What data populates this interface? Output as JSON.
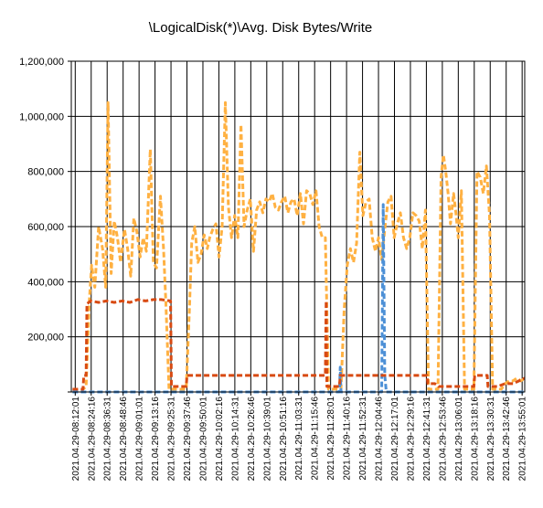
{
  "chart_data": {
    "type": "line",
    "title": "\\LogicalDisk(*)\\Avg. Disk Bytes/Write",
    "xlabel": "",
    "ylabel": "",
    "ylim": [
      0,
      1200000
    ],
    "y_ticks": [
      0,
      200000,
      400000,
      600000,
      800000,
      1000000,
      1200000
    ],
    "y_tick_labels": [
      "",
      "200,000",
      "400,000",
      "600,000",
      "800,000",
      "1,000,000",
      "1,200,000"
    ],
    "grid": true,
    "legend": "none",
    "x_start": "2021.04.29-08:09:00",
    "x_end": "2021.04.29-13:57:00",
    "categories": [
      "2021.04.29-08:12:01",
      "2021.04.29-08:24:16",
      "2021.04.29-08:36:31",
      "2021.04.29-08:48:46",
      "2021.04.29-09:01:01",
      "2021.04.29-09:13:16",
      "2021.04.29-09:25:31",
      "2021.04.29-09:37:46",
      "2021.04.29-09:50:01",
      "2021.04.29-10:02:16",
      "2021.04.29-10:14:31",
      "2021.04.29-10:26:46",
      "2021.04.29-10:39:01",
      "2021.04.29-10:51:16",
      "2021.04.29-11:03:31",
      "2021.04.29-11:15:46",
      "2021.04.29-11:28:01",
      "2021.04.29-11:40:16",
      "2021.04.29-11:52:31",
      "2021.04.29-12:04:46",
      "2021.04.29-12:17:01",
      "2021.04.29-12:29:16",
      "2021.04.29-12:41:31",
      "2021.04.29-12:53:46",
      "2021.04.29-13:06:01",
      "2021.04.29-13:18:16",
      "2021.04.29-13:30:31",
      "2021.04.29-13:42:46",
      "2021.04.29-13:55:01"
    ],
    "series": [
      {
        "color": "#ffb142",
        "values": [
          [
            8.1667,
            5000
          ],
          [
            8.28,
            5000
          ],
          [
            8.34,
            20000
          ],
          [
            8.38,
            330000
          ],
          [
            8.41,
            460000
          ],
          [
            8.45,
            380000
          ],
          [
            8.5,
            600000
          ],
          [
            8.55,
            520000
          ],
          [
            8.59,
            380000
          ],
          [
            8.62,
            1050000
          ],
          [
            8.66,
            430000
          ],
          [
            8.7,
            620000
          ],
          [
            8.74,
            560000
          ],
          [
            8.78,
            470000
          ],
          [
            8.83,
            590000
          ],
          [
            8.87,
            520000
          ],
          [
            8.91,
            420000
          ],
          [
            8.95,
            630000
          ],
          [
            8.99,
            580000
          ],
          [
            9.03,
            490000
          ],
          [
            9.07,
            560000
          ],
          [
            9.11,
            510000
          ],
          [
            9.16,
            880000
          ],
          [
            9.2,
            470000
          ],
          [
            9.24,
            450000
          ],
          [
            9.29,
            710000
          ],
          [
            9.33,
            520000
          ],
          [
            9.36,
            320000
          ],
          [
            9.4,
            10000
          ],
          [
            9.55,
            10000
          ],
          [
            9.62,
            10000
          ],
          [
            9.66,
            290000
          ],
          [
            9.69,
            540000
          ],
          [
            9.73,
            600000
          ],
          [
            9.77,
            470000
          ],
          [
            9.81,
            500000
          ],
          [
            9.85,
            570000
          ],
          [
            9.89,
            520000
          ],
          [
            9.92,
            560000
          ],
          [
            9.96,
            590000
          ],
          [
            10.0,
            610000
          ],
          [
            10.04,
            490000
          ],
          [
            10.08,
            600000
          ],
          [
            10.12,
            1050000
          ],
          [
            10.16,
            670000
          ],
          [
            10.2,
            560000
          ],
          [
            10.24,
            640000
          ],
          [
            10.28,
            560000
          ],
          [
            10.32,
            970000
          ],
          [
            10.36,
            600000
          ],
          [
            10.4,
            660000
          ],
          [
            10.44,
            700000
          ],
          [
            10.48,
            510000
          ],
          [
            10.52,
            660000
          ],
          [
            10.56,
            690000
          ],
          [
            10.6,
            650000
          ],
          [
            10.64,
            700000
          ],
          [
            10.68,
            690000
          ],
          [
            10.72,
            720000
          ],
          [
            10.76,
            670000
          ],
          [
            10.8,
            660000
          ],
          [
            10.84,
            690000
          ],
          [
            10.88,
            710000
          ],
          [
            10.92,
            650000
          ],
          [
            10.96,
            690000
          ],
          [
            11.0,
            700000
          ],
          [
            11.04,
            640000
          ],
          [
            11.08,
            720000
          ],
          [
            11.12,
            610000
          ],
          [
            11.16,
            730000
          ],
          [
            11.2,
            720000
          ],
          [
            11.24,
            680000
          ],
          [
            11.28,
            730000
          ],
          [
            11.32,
            600000
          ],
          [
            11.36,
            560000
          ],
          [
            11.4,
            560000
          ],
          [
            11.44,
            10000
          ],
          [
            11.6,
            10000
          ],
          [
            11.64,
            300000
          ],
          [
            11.68,
            460000
          ],
          [
            11.72,
            520000
          ],
          [
            11.76,
            470000
          ],
          [
            11.8,
            540000
          ],
          [
            11.84,
            870000
          ],
          [
            11.88,
            640000
          ],
          [
            11.92,
            690000
          ],
          [
            11.96,
            700000
          ],
          [
            12.0,
            560000
          ],
          [
            12.04,
            510000
          ],
          [
            12.08,
            560000
          ],
          [
            12.12,
            480000
          ],
          [
            12.16,
            590000
          ],
          [
            12.2,
            690000
          ],
          [
            12.24,
            710000
          ],
          [
            12.28,
            560000
          ],
          [
            12.32,
            610000
          ],
          [
            12.36,
            650000
          ],
          [
            12.4,
            560000
          ],
          [
            12.44,
            520000
          ],
          [
            12.48,
            560000
          ],
          [
            12.52,
            650000
          ],
          [
            12.56,
            640000
          ],
          [
            12.6,
            620000
          ],
          [
            12.64,
            520000
          ],
          [
            12.68,
            660000
          ],
          [
            12.72,
            10000
          ],
          [
            12.84,
            10000
          ],
          [
            12.86,
            390000
          ],
          [
            12.88,
            780000
          ],
          [
            12.91,
            860000
          ],
          [
            12.94,
            800000
          ],
          [
            12.97,
            720000
          ],
          [
            13.0,
            610000
          ],
          [
            13.04,
            720000
          ],
          [
            13.07,
            650000
          ],
          [
            13.1,
            560000
          ],
          [
            13.14,
            730000
          ],
          [
            13.18,
            10000
          ],
          [
            13.3,
            10000
          ],
          [
            13.34,
            800000
          ],
          [
            13.38,
            780000
          ],
          [
            13.42,
            720000
          ],
          [
            13.46,
            820000
          ],
          [
            13.5,
            640000
          ],
          [
            13.54,
            10000
          ],
          [
            13.62,
            10000
          ],
          [
            13.65,
            10000
          ],
          [
            13.7,
            30000
          ],
          [
            13.75,
            40000
          ],
          [
            13.8,
            40000
          ],
          [
            13.85,
            50000
          ],
          [
            13.9,
            40000
          ],
          [
            13.95,
            50000
          ]
        ]
      },
      {
        "color": "#4d90d6",
        "values": [
          [
            8.1667,
            0
          ],
          [
            11.58,
            0
          ],
          [
            11.59,
            90000
          ],
          [
            11.6,
            0
          ],
          [
            12.12,
            0
          ],
          [
            12.14,
            680000
          ],
          [
            12.16,
            60000
          ],
          [
            12.18,
            0
          ],
          [
            13.95,
            0
          ]
        ]
      },
      {
        "color": "#d84a12",
        "values": [
          [
            8.1667,
            10000
          ],
          [
            8.3,
            10000
          ],
          [
            8.31,
            60000
          ],
          [
            8.34,
            60000
          ],
          [
            8.35,
            320000
          ],
          [
            8.4,
            330000
          ],
          [
            8.5,
            325000
          ],
          [
            8.6,
            330000
          ],
          [
            8.7,
            325000
          ],
          [
            8.8,
            330000
          ],
          [
            8.9,
            325000
          ],
          [
            9.0,
            335000
          ],
          [
            9.1,
            330000
          ],
          [
            9.2,
            335000
          ],
          [
            9.3,
            335000
          ],
          [
            9.42,
            330000
          ],
          [
            9.43,
            20000
          ],
          [
            9.55,
            20000
          ],
          [
            9.62,
            20000
          ],
          [
            9.63,
            60000
          ],
          [
            9.7,
            60000
          ],
          [
            9.8,
            60000
          ],
          [
            9.9,
            60000
          ],
          [
            10.0,
            60000
          ],
          [
            10.1,
            60000
          ],
          [
            10.2,
            60000
          ],
          [
            10.3,
            60000
          ],
          [
            10.4,
            60000
          ],
          [
            10.5,
            60000
          ],
          [
            10.6,
            60000
          ],
          [
            10.7,
            60000
          ],
          [
            10.8,
            60000
          ],
          [
            10.9,
            60000
          ],
          [
            11.0,
            60000
          ],
          [
            11.1,
            60000
          ],
          [
            11.2,
            60000
          ],
          [
            11.3,
            60000
          ],
          [
            11.4,
            60000
          ],
          [
            11.41,
            330000
          ],
          [
            11.42,
            20000
          ],
          [
            11.58,
            20000
          ],
          [
            11.59,
            60000
          ],
          [
            11.7,
            60000
          ],
          [
            11.8,
            60000
          ],
          [
            11.9,
            60000
          ],
          [
            12.0,
            60000
          ],
          [
            12.1,
            60000
          ],
          [
            12.2,
            60000
          ],
          [
            12.3,
            60000
          ],
          [
            12.4,
            60000
          ],
          [
            12.5,
            60000
          ],
          [
            12.6,
            60000
          ],
          [
            12.7,
            60000
          ],
          [
            12.71,
            30000
          ],
          [
            12.8,
            30000
          ],
          [
            12.85,
            20000
          ],
          [
            12.95,
            20000
          ],
          [
            13.05,
            20000
          ],
          [
            13.2,
            20000
          ],
          [
            13.3,
            20000
          ],
          [
            13.31,
            60000
          ],
          [
            13.4,
            60000
          ],
          [
            13.47,
            60000
          ],
          [
            13.48,
            20000
          ],
          [
            13.6,
            20000
          ],
          [
            13.7,
            30000
          ],
          [
            13.8,
            30000
          ],
          [
            13.95,
            50000
          ]
        ]
      }
    ]
  }
}
